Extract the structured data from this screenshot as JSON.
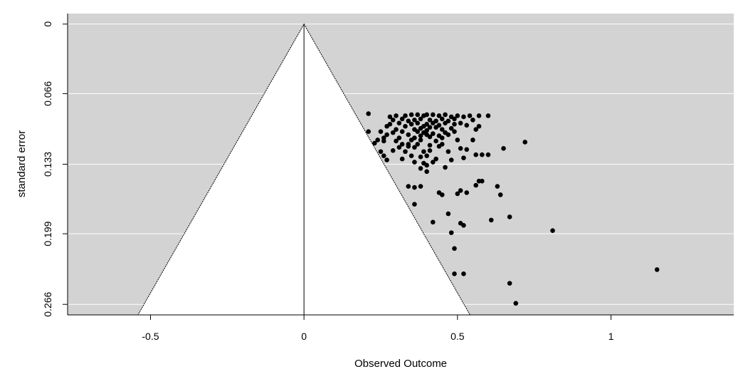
{
  "chart_data": {
    "type": "scatter",
    "title": "",
    "xlabel": "Observed Outcome",
    "ylabel": "standard error",
    "xlim": [
      -0.77,
      1.4
    ],
    "ylim": [
      0.276,
      -0.01
    ],
    "x_ticks": [
      -0.5,
      0,
      0.5,
      1
    ],
    "x_tick_labels": [
      "-0.5",
      "0",
      "0.5",
      "1"
    ],
    "y_ticks": [
      0,
      0.066,
      0.133,
      0.199,
      0.266
    ],
    "y_tick_labels": [
      "0",
      "0.066",
      "0.133",
      "0.199",
      "0.266"
    ],
    "y_reversed": true,
    "grid": "horizontal",
    "background_color": "#d3d3d3",
    "funnel_color": "#ffffff",
    "point_color": "#000000",
    "funnel_center": 0,
    "funnel_z": 1.96,
    "points": [
      [
        0.21,
        0.085
      ],
      [
        0.28,
        0.088
      ],
      [
        0.3,
        0.087
      ],
      [
        0.33,
        0.087
      ],
      [
        0.35,
        0.086
      ],
      [
        0.37,
        0.086
      ],
      [
        0.39,
        0.087
      ],
      [
        0.4,
        0.086
      ],
      [
        0.42,
        0.086
      ],
      [
        0.44,
        0.087
      ],
      [
        0.46,
        0.086
      ],
      [
        0.48,
        0.088
      ],
      [
        0.5,
        0.087
      ],
      [
        0.52,
        0.088
      ],
      [
        0.54,
        0.087
      ],
      [
        0.57,
        0.087
      ],
      [
        0.6,
        0.087
      ],
      [
        0.29,
        0.091
      ],
      [
        0.32,
        0.09
      ],
      [
        0.34,
        0.092
      ],
      [
        0.36,
        0.091
      ],
      [
        0.38,
        0.09
      ],
      [
        0.41,
        0.091
      ],
      [
        0.43,
        0.092
      ],
      [
        0.45,
        0.09
      ],
      [
        0.47,
        0.092
      ],
      [
        0.49,
        0.09
      ],
      [
        0.55,
        0.091
      ],
      [
        0.28,
        0.095
      ],
      [
        0.31,
        0.094
      ],
      [
        0.35,
        0.095
      ],
      [
        0.37,
        0.094
      ],
      [
        0.4,
        0.095
      ],
      [
        0.42,
        0.094
      ],
      [
        0.44,
        0.096
      ],
      [
        0.46,
        0.094
      ],
      [
        0.49,
        0.095
      ],
      [
        0.51,
        0.094
      ],
      [
        0.27,
        0.097
      ],
      [
        0.33,
        0.097
      ],
      [
        0.39,
        0.097
      ],
      [
        0.41,
        0.098
      ],
      [
        0.43,
        0.098
      ],
      [
        0.53,
        0.096
      ],
      [
        0.57,
        0.097
      ],
      [
        0.3,
        0.1
      ],
      [
        0.36,
        0.1
      ],
      [
        0.38,
        0.099
      ],
      [
        0.4,
        0.101
      ],
      [
        0.45,
        0.1
      ],
      [
        0.48,
        0.099
      ],
      [
        0.56,
        0.1
      ],
      [
        0.21,
        0.102
      ],
      [
        0.25,
        0.102
      ],
      [
        0.29,
        0.103
      ],
      [
        0.32,
        0.102
      ],
      [
        0.37,
        0.102
      ],
      [
        0.39,
        0.103
      ],
      [
        0.42,
        0.104
      ],
      [
        0.46,
        0.103
      ],
      [
        0.49,
        0.102
      ],
      [
        0.27,
        0.105
      ],
      [
        0.34,
        0.105
      ],
      [
        0.38,
        0.106
      ],
      [
        0.4,
        0.105
      ],
      [
        0.44,
        0.106
      ],
      [
        0.47,
        0.105
      ],
      [
        0.26,
        0.108
      ],
      [
        0.31,
        0.108
      ],
      [
        0.36,
        0.108
      ],
      [
        0.41,
        0.107
      ],
      [
        0.45,
        0.108
      ],
      [
        0.24,
        0.11
      ],
      [
        0.26,
        0.111
      ],
      [
        0.3,
        0.111
      ],
      [
        0.35,
        0.11
      ],
      [
        0.38,
        0.11
      ],
      [
        0.43,
        0.111
      ],
      [
        0.5,
        0.11
      ],
      [
        0.55,
        0.11
      ],
      [
        0.72,
        0.112
      ],
      [
        0.23,
        0.113
      ],
      [
        0.32,
        0.114
      ],
      [
        0.34,
        0.114
      ],
      [
        0.37,
        0.114
      ],
      [
        0.41,
        0.115
      ],
      [
        0.45,
        0.114
      ],
      [
        0.31,
        0.117
      ],
      [
        0.34,
        0.116
      ],
      [
        0.36,
        0.117
      ],
      [
        0.44,
        0.116
      ],
      [
        0.51,
        0.118
      ],
      [
        0.53,
        0.119
      ],
      [
        0.65,
        0.118
      ],
      [
        0.25,
        0.121
      ],
      [
        0.29,
        0.12
      ],
      [
        0.33,
        0.121
      ],
      [
        0.39,
        0.121
      ],
      [
        0.41,
        0.12
      ],
      [
        0.47,
        0.121
      ],
      [
        0.26,
        0.125
      ],
      [
        0.35,
        0.125
      ],
      [
        0.38,
        0.126
      ],
      [
        0.4,
        0.125
      ],
      [
        0.56,
        0.124
      ],
      [
        0.58,
        0.124
      ],
      [
        0.6,
        0.124
      ],
      [
        0.52,
        0.127
      ],
      [
        0.27,
        0.129
      ],
      [
        0.32,
        0.128
      ],
      [
        0.43,
        0.128
      ],
      [
        0.48,
        0.129
      ],
      [
        0.36,
        0.131
      ],
      [
        0.39,
        0.132
      ],
      [
        0.42,
        0.131
      ],
      [
        0.4,
        0.134
      ],
      [
        0.46,
        0.136
      ],
      [
        0.38,
        0.137
      ],
      [
        0.4,
        0.14
      ],
      [
        0.57,
        0.149
      ],
      [
        0.58,
        0.149
      ],
      [
        0.56,
        0.153
      ],
      [
        0.34,
        0.154
      ],
      [
        0.36,
        0.155
      ],
      [
        0.38,
        0.154
      ],
      [
        0.63,
        0.154
      ],
      [
        0.51,
        0.158
      ],
      [
        0.44,
        0.16
      ],
      [
        0.5,
        0.161
      ],
      [
        0.53,
        0.16
      ],
      [
        0.45,
        0.162
      ],
      [
        0.64,
        0.162
      ],
      [
        0.36,
        0.171
      ],
      [
        0.47,
        0.18
      ],
      [
        0.67,
        0.183
      ],
      [
        0.42,
        0.188
      ],
      [
        0.51,
        0.189
      ],
      [
        0.61,
        0.186
      ],
      [
        0.52,
        0.191
      ],
      [
        0.48,
        0.198
      ],
      [
        0.81,
        0.196
      ],
      [
        0.49,
        0.213
      ],
      [
        1.15,
        0.233
      ],
      [
        0.49,
        0.237
      ],
      [
        0.52,
        0.237
      ],
      [
        0.67,
        0.246
      ],
      [
        0.69,
        0.265
      ]
    ]
  }
}
